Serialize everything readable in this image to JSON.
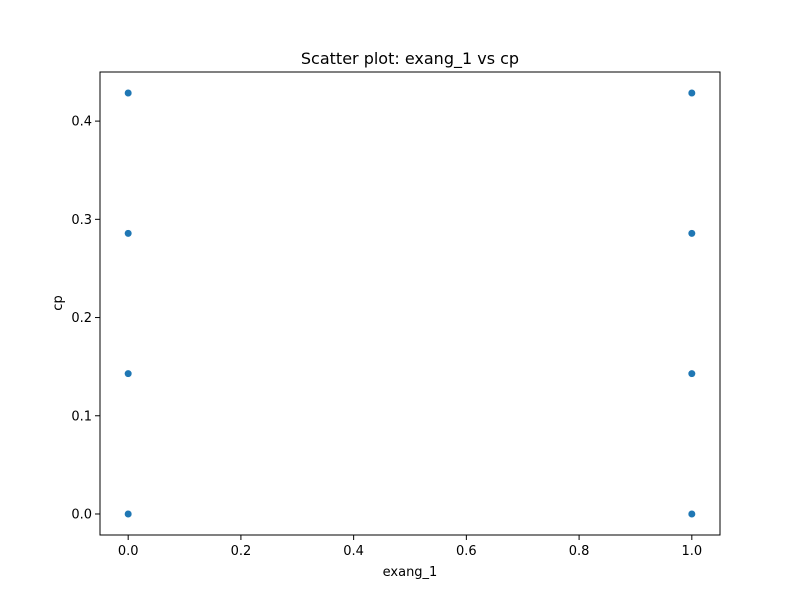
{
  "chart_data": {
    "type": "scatter",
    "title": "Scatter plot: exang_1 vs cp",
    "xlabel": "exang_1",
    "ylabel": "cp",
    "xlim": [
      -0.05,
      1.05
    ],
    "ylim": [
      -0.0214,
      0.45
    ],
    "xticks": [
      0.0,
      0.2,
      0.4,
      0.6,
      0.8,
      1.0
    ],
    "xtick_labels": [
      "0.0",
      "0.2",
      "0.4",
      "0.6",
      "0.8",
      "1.0"
    ],
    "yticks": [
      0.0,
      0.1,
      0.2,
      0.3,
      0.4
    ],
    "ytick_labels": [
      "0.0",
      "0.1",
      "0.2",
      "0.3",
      "0.4"
    ],
    "grid": false,
    "legend": "none",
    "marker_color": "#1f77b4",
    "points": [
      {
        "x": 0,
        "y": 0.4286
      },
      {
        "x": 0,
        "y": 0.2857
      },
      {
        "x": 0,
        "y": 0.1429
      },
      {
        "x": 0,
        "y": 0.0
      },
      {
        "x": 1,
        "y": 0.4286
      },
      {
        "x": 1,
        "y": 0.2857
      },
      {
        "x": 1,
        "y": 0.1429
      },
      {
        "x": 1,
        "y": 0.0
      }
    ]
  }
}
